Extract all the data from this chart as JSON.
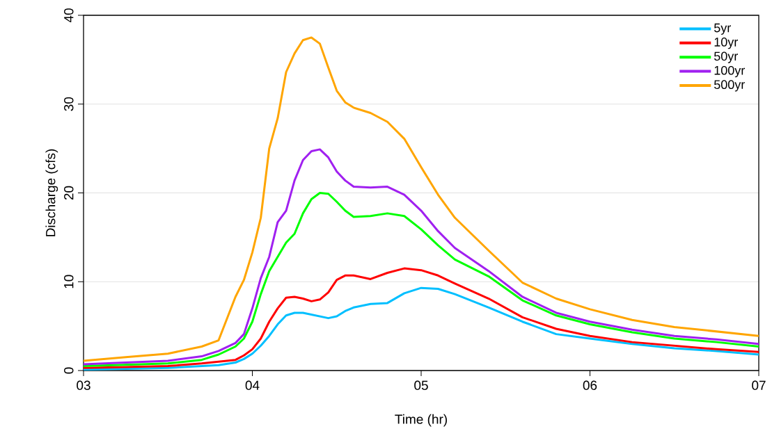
{
  "chart_data": {
    "type": "line",
    "xlabel": "Time (hr)",
    "ylabel": "Discharge (cfs)",
    "x": [
      3.0,
      3.25,
      3.5,
      3.7,
      3.8,
      3.9,
      3.95,
      4.0,
      4.05,
      4.1,
      4.15,
      4.2,
      4.25,
      4.3,
      4.35,
      4.4,
      4.45,
      4.5,
      4.55,
      4.6,
      4.7,
      4.8,
      4.9,
      5.0,
      5.1,
      5.2,
      5.4,
      5.6,
      5.8,
      6.0,
      6.25,
      6.5,
      6.75,
      7.0
    ],
    "xlim": [
      3,
      7
    ],
    "xticks": [
      {
        "value": 3,
        "label": "03"
      },
      {
        "value": 4,
        "label": "04"
      },
      {
        "value": 5,
        "label": "05"
      },
      {
        "value": 6,
        "label": "06"
      },
      {
        "value": 7,
        "label": "07"
      }
    ],
    "ylim": [
      0,
      40
    ],
    "yticks": [
      0,
      10,
      20,
      30,
      40
    ],
    "grid": "y",
    "legend": "top right",
    "series": [
      {
        "name": "5yr",
        "color": "#00bfff",
        "values": [
          0.1,
          0.2,
          0.3,
          0.5,
          0.6,
          0.9,
          1.3,
          1.9,
          2.8,
          3.9,
          5.2,
          6.2,
          6.5,
          6.5,
          6.3,
          6.1,
          5.9,
          6.1,
          6.7,
          7.1,
          7.5,
          7.6,
          8.7,
          9.3,
          9.2,
          8.6,
          7.1,
          5.5,
          4.1,
          3.6,
          3.0,
          2.5,
          2.2,
          1.8
        ]
      },
      {
        "name": "10yr",
        "color": "#ff0000",
        "values": [
          0.3,
          0.4,
          0.5,
          0.8,
          1.0,
          1.2,
          1.7,
          2.4,
          3.6,
          5.5,
          7.0,
          8.2,
          8.3,
          8.1,
          7.8,
          8.0,
          8.8,
          10.2,
          10.7,
          10.7,
          10.3,
          11.0,
          11.5,
          11.3,
          10.7,
          9.8,
          8.1,
          6.0,
          4.7,
          3.9,
          3.2,
          2.8,
          2.4,
          2.1
        ]
      },
      {
        "name": "50yr",
        "color": "#00ff00",
        "values": [
          0.5,
          0.65,
          0.8,
          1.2,
          1.8,
          2.7,
          3.6,
          5.5,
          8.6,
          11.2,
          12.8,
          14.4,
          15.4,
          17.7,
          19.3,
          20.0,
          19.9,
          19.0,
          18.0,
          17.3,
          17.4,
          17.7,
          17.4,
          15.9,
          14.1,
          12.5,
          10.6,
          7.9,
          6.2,
          5.2,
          4.3,
          3.6,
          3.2,
          2.7
        ]
      },
      {
        "name": "100yr",
        "color": "#a020f0",
        "values": [
          0.7,
          0.9,
          1.1,
          1.6,
          2.2,
          3.1,
          4.1,
          7.0,
          10.4,
          12.8,
          16.7,
          18.0,
          21.4,
          23.7,
          24.7,
          24.9,
          24.0,
          22.4,
          21.4,
          20.7,
          20.6,
          20.7,
          19.8,
          18.0,
          15.7,
          13.8,
          11.2,
          8.3,
          6.5,
          5.5,
          4.6,
          3.9,
          3.5,
          3.0
        ]
      },
      {
        "name": "500yr",
        "color": "#ffa500",
        "values": [
          1.1,
          1.5,
          1.9,
          2.7,
          3.4,
          8.3,
          10.2,
          13.3,
          17.2,
          25.0,
          28.4,
          33.6,
          35.7,
          37.2,
          37.5,
          36.8,
          34.1,
          31.5,
          30.2,
          29.6,
          29.0,
          28.0,
          26.1,
          22.9,
          19.8,
          17.2,
          13.5,
          9.9,
          8.1,
          6.9,
          5.7,
          4.9,
          4.4,
          3.9
        ]
      }
    ]
  }
}
